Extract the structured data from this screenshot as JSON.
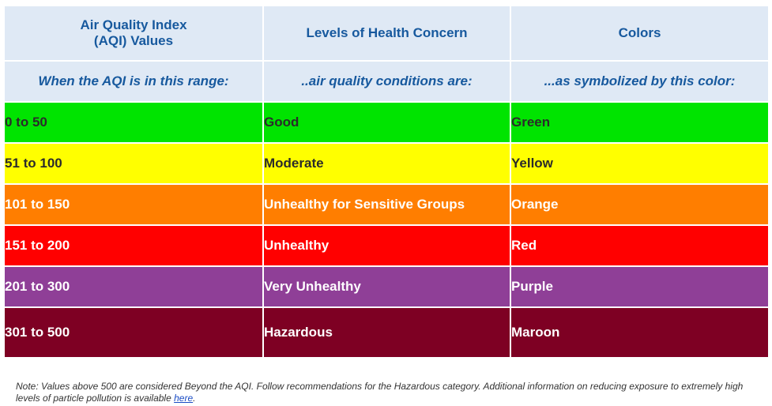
{
  "header": {
    "col1_line1": "Air Quality Index",
    "col1_line2": "(AQI) Values",
    "col2": "Levels of Health Concern",
    "col3": "Colors"
  },
  "subheader": {
    "col1": "When the AQI is in this range:",
    "col2": "..air quality conditions are:",
    "col3": "...as symbolized by this color:"
  },
  "rows": [
    {
      "range": "0 to 50",
      "level": "Good",
      "color_name": "Green",
      "bg": "#00e400",
      "fg": "#2b2b2b"
    },
    {
      "range": "51 to 100",
      "level": "Moderate",
      "color_name": "Yellow",
      "bg": "#ffff00",
      "fg": "#2b2b2b"
    },
    {
      "range": "101 to 150",
      "level": "Unhealthy for Sensitive Groups",
      "color_name": "Orange",
      "bg": "#ff7e00",
      "fg": "#ffffff"
    },
    {
      "range": "151 to 200",
      "level": "Unhealthy",
      "color_name": "Red",
      "bg": "#ff0000",
      "fg": "#ffffff"
    },
    {
      "range": "201 to 300",
      "level": "Very Unhealthy",
      "color_name": "Purple",
      "bg": "#8f3f97",
      "fg": "#ffffff"
    },
    {
      "range": "301 to 500",
      "level": "Hazardous",
      "color_name": "Maroon",
      "bg": "#7e0023",
      "fg": "#ffffff"
    }
  ],
  "footnote": {
    "text": "Note: Values above 500 are considered Beyond the AQI. Follow recommendations for the Hazardous category. Additional information on reducing exposure to extremely high levels of particle pollution is available ",
    "link": "here",
    "end": "."
  }
}
